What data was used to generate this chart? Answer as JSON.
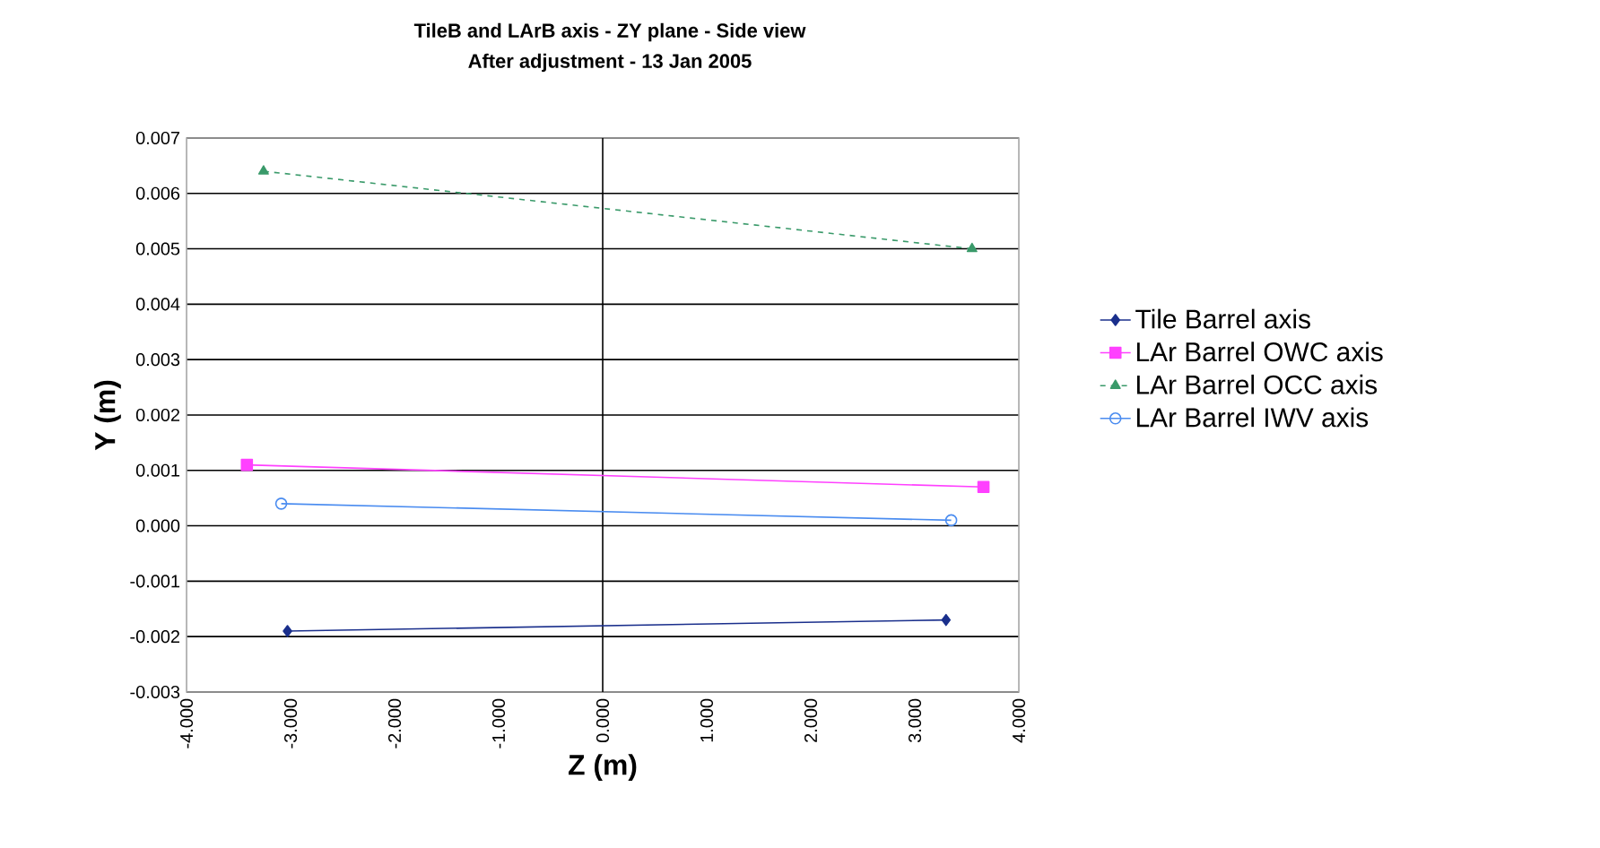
{
  "chart_data": {
    "type": "line",
    "title": "TileB and LArB axis - ZY plane - Side view",
    "subtitle": "After adjustment - 13 Jan 2005",
    "xlabel": "Z (m)",
    "ylabel": "Y (m)",
    "xlim": [
      -4,
      4
    ],
    "ylim": [
      -0.003,
      0.007
    ],
    "xticks": [
      {
        "value": -4,
        "label": "-4.000"
      },
      {
        "value": -3,
        "label": "-3.000"
      },
      {
        "value": -2,
        "label": "-2.000"
      },
      {
        "value": -1,
        "label": "-1.000"
      },
      {
        "value": 0,
        "label": "0.000"
      },
      {
        "value": 1,
        "label": "1.000"
      },
      {
        "value": 2,
        "label": "2.000"
      },
      {
        "value": 3,
        "label": "3.000"
      },
      {
        "value": 4,
        "label": "4.000"
      }
    ],
    "yticks": [
      {
        "value": -0.003,
        "label": "-0.003"
      },
      {
        "value": -0.002,
        "label": "-0.002"
      },
      {
        "value": -0.001,
        "label": "-0.001"
      },
      {
        "value": 0,
        "label": "0.000"
      },
      {
        "value": 0.001,
        "label": "0.001"
      },
      {
        "value": 0.002,
        "label": "0.002"
      },
      {
        "value": 0.003,
        "label": "0.003"
      },
      {
        "value": 0.004,
        "label": "0.004"
      },
      {
        "value": 0.005,
        "label": "0.005"
      },
      {
        "value": 0.006,
        "label": "0.006"
      },
      {
        "value": 0.007,
        "label": "0.007"
      }
    ],
    "grid": "y",
    "legend": "right",
    "line_style": "solid",
    "ref_lines": [
      {
        "axis": "x",
        "value": 0,
        "color": "#000000"
      }
    ],
    "series": [
      {
        "name": "Tile Barrel axis",
        "color": "#1a2f8c",
        "marker": "diamond",
        "x": [
          -3.03,
          3.3
        ],
        "values": [
          -0.0019,
          -0.0017
        ]
      },
      {
        "name": "LAr Barrel OWC axis",
        "color": "#ff40ff",
        "marker": "square",
        "x": [
          -3.42,
          3.66
        ],
        "values": [
          0.0011,
          0.0007
        ]
      },
      {
        "name": "LAr Barrel OCC axis",
        "color": "#3a9a6a",
        "marker": "triangle",
        "line_style": "dashed",
        "x": [
          -3.26,
          3.55
        ],
        "values": [
          0.0064,
          0.005
        ]
      },
      {
        "name": "LAr Barrel IWV axis",
        "color": "#4a8cf0",
        "marker": "circle",
        "x": [
          -3.09,
          3.35
        ],
        "values": [
          0.0004,
          0.0001
        ]
      }
    ]
  }
}
